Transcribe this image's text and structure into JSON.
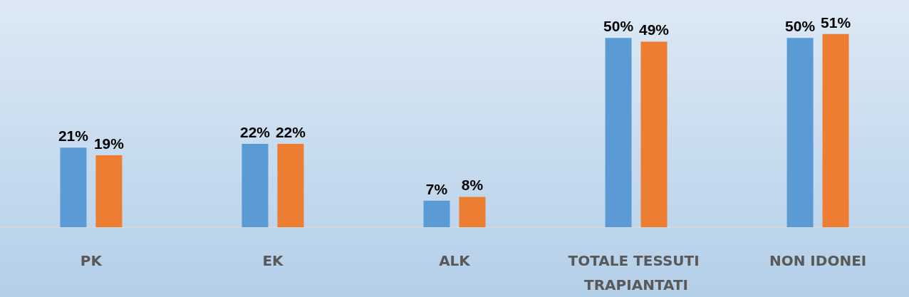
{
  "chart_data": {
    "type": "bar",
    "categories": [
      "PK",
      "EK",
      "ALK",
      "TOTALE TESSUTI TRAPIANTATI",
      "NON IDONEI"
    ],
    "series": [
      {
        "color": "#5b9bd5",
        "values": [
          21,
          22,
          7,
          50,
          50
        ],
        "value_labels": [
          "21%",
          "22%",
          "7%",
          "50%",
          "50%"
        ]
      },
      {
        "color": "#ed7d31",
        "values": [
          19,
          22,
          8,
          49,
          51
        ],
        "value_labels": [
          "19%",
          "22%",
          "8%",
          "49%",
          "51%"
        ]
      }
    ]
  }
}
